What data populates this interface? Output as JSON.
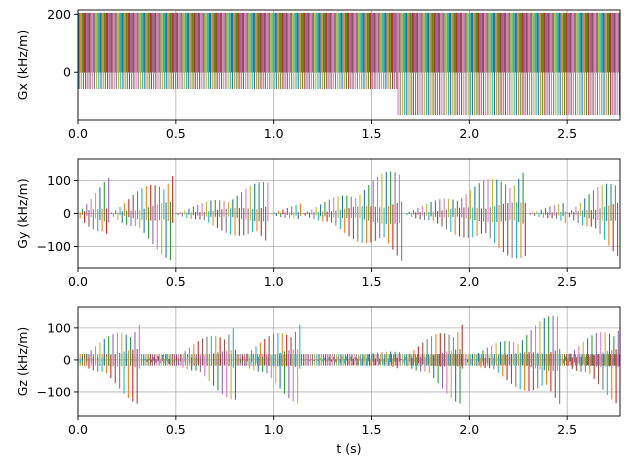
{
  "colors": {
    "series": [
      "#1f77b4",
      "#ff7f0e",
      "#2ca02c",
      "#d62728",
      "#9467bd",
      "#8c564b",
      "#e377c2",
      "#7f7f7f",
      "#bcbd22",
      "#17becf"
    ],
    "grid": "#b0b0b0",
    "frame": "#000000"
  },
  "chart_data": [
    {
      "type": "line",
      "ylabel": "Gx (kHz/m)",
      "xlabel": "",
      "xlim": [
        0,
        2.77
      ],
      "ylim": [
        -165,
        215
      ],
      "xticks": [
        0.0,
        0.5,
        1.0,
        1.5,
        2.0,
        2.5
      ],
      "xtick_labels": [
        "0.0",
        "0.5",
        "1.0",
        "1.5",
        "2.0",
        "2.5"
      ],
      "yticks": [
        0,
        200
      ],
      "ytick_labels": [
        "0",
        "200"
      ],
      "grid": true,
      "waveform": {
        "kind": "readout",
        "segments": [
          {
            "t_start": 0.0,
            "t_end": 1.63,
            "high": 203,
            "low": -58,
            "period": 0.0112
          },
          {
            "t_start": 1.63,
            "t_end": 2.77,
            "high": 203,
            "low": -148,
            "mid": 135,
            "period": 0.0112
          }
        ]
      }
    },
    {
      "type": "line",
      "ylabel": "Gy (kHz/m)",
      "xlabel": "",
      "xlim": [
        0,
        2.77
      ],
      "ylim": [
        -165,
        165
      ],
      "xticks": [
        0.0,
        0.5,
        1.0,
        1.5,
        2.0,
        2.5
      ],
      "xtick_labels": [
        "0.0",
        "0.5",
        "1.0",
        "1.5",
        "2.0",
        "2.5"
      ],
      "yticks": [
        -100,
        0,
        100
      ],
      "ytick_labels": [
        "−100",
        "0",
        "100"
      ],
      "grid": true,
      "waveform": {
        "kind": "phase-encode",
        "spike_spacing": 0.0112,
        "cycles": [
          {
            "t_start": 0.0,
            "t_end": 0.17,
            "peak": 110,
            "sign": 1
          },
          {
            "t_start": 0.17,
            "t_end": 0.5,
            "peak": 150,
            "sign": 1
          },
          {
            "t_start": 0.5,
            "t_end": 0.98,
            "peak": 105,
            "sign": 1
          },
          {
            "t_start": 0.98,
            "t_end": 1.15,
            "peak": 30,
            "sign": 1
          },
          {
            "t_start": 1.15,
            "t_end": 1.67,
            "peak": 150,
            "sign": 1
          },
          {
            "t_start": 1.67,
            "t_end": 2.3,
            "peak": 150,
            "sign": 1
          },
          {
            "t_start": 2.3,
            "t_end": 2.5,
            "peak": 35,
            "sign": 1
          },
          {
            "t_start": 2.5,
            "t_end": 2.77,
            "peak": 130,
            "sign": 1
          }
        ]
      }
    },
    {
      "type": "line",
      "ylabel": "Gz (kHz/m)",
      "xlabel": "t (s)",
      "xlim": [
        0,
        2.77
      ],
      "ylim": [
        -175,
        165
      ],
      "xticks": [
        0.0,
        0.5,
        1.0,
        1.5,
        2.0,
        2.5
      ],
      "xtick_labels": [
        "0.0",
        "0.5",
        "1.0",
        "1.5",
        "2.0",
        "2.5"
      ],
      "yticks": [
        -100,
        0,
        100
      ],
      "ytick_labels": [
        "−100",
        "0",
        "100"
      ],
      "grid": true,
      "waveform": {
        "kind": "phase-encode",
        "spike_spacing": 0.0112,
        "baseline_band": 18,
        "cycles": [
          {
            "t_start": 0.0,
            "t_end": 0.32,
            "peak": 145,
            "sign": 1
          },
          {
            "t_start": 0.32,
            "t_end": 0.48,
            "peak": 20,
            "sign": 1
          },
          {
            "t_start": 0.48,
            "t_end": 0.82,
            "peak": 135,
            "sign": 1
          },
          {
            "t_start": 0.82,
            "t_end": 1.15,
            "peak": 145,
            "sign": 1
          },
          {
            "t_start": 1.15,
            "t_end": 1.65,
            "peak": 30,
            "sign": 1
          },
          {
            "t_start": 1.65,
            "t_end": 1.98,
            "peak": 145,
            "sign": 1
          },
          {
            "t_start": 1.98,
            "t_end": 2.47,
            "peak": 155,
            "sign": 1
          },
          {
            "t_start": 2.47,
            "t_end": 2.77,
            "peak": 140,
            "sign": 1
          }
        ]
      }
    }
  ]
}
